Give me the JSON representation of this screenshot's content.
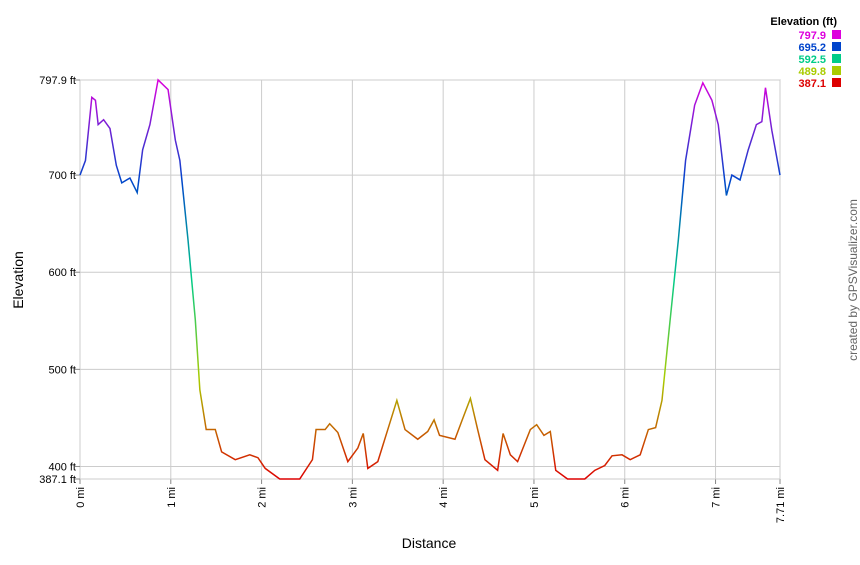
{
  "chart_data": {
    "type": "line",
    "x_label": "Distance",
    "y_label": "Elevation",
    "watermark": "created by GPSVisualizer.com",
    "series": [
      {
        "name": "Elevation",
        "x": [
          0,
          0.06,
          0.13,
          0.17,
          0.2,
          0.26,
          0.33,
          0.4,
          0.46,
          0.55,
          0.63,
          0.69,
          0.77,
          0.86,
          0.97,
          1.05,
          1.1,
          1.19,
          1.27,
          1.32,
          1.39,
          1.49,
          1.56,
          1.71,
          1.87,
          1.96,
          2.04,
          2.2,
          2.42,
          2.56,
          2.6,
          2.7,
          2.75,
          2.84,
          2.95,
          3.06,
          3.12,
          3.17,
          3.28,
          3.39,
          3.49,
          3.58,
          3.72,
          3.83,
          3.9,
          3.96,
          4.13,
          4.21,
          4.3,
          4.38,
          4.46,
          4.6,
          4.66,
          4.74,
          4.82,
          4.96,
          5.03,
          5.11,
          5.18,
          5.24,
          5.37,
          5.56,
          5.67,
          5.78,
          5.86,
          5.97,
          6.06,
          6.17,
          6.26,
          6.34,
          6.41,
          6.5,
          6.59,
          6.67,
          6.77,
          6.86,
          6.96,
          7.03,
          7.12,
          7.18,
          7.27,
          7.36,
          7.45,
          7.51,
          7.55,
          7.62,
          7.71
        ],
        "values": [
          700,
          715,
          780,
          777,
          752,
          757,
          748,
          710,
          692,
          697,
          682,
          726,
          752,
          798,
          788,
          736,
          715,
          633,
          551,
          479,
          438,
          438,
          415,
          407,
          412,
          409,
          398,
          387.1,
          387.1,
          407,
          438,
          438,
          444,
          435,
          405,
          419,
          434,
          398,
          405,
          438,
          468,
          438,
          428,
          436,
          448,
          432,
          428,
          448,
          470,
          438,
          407,
          396,
          434,
          412,
          405,
          438,
          443,
          432,
          436,
          396,
          387.1,
          387.1,
          396,
          401,
          411,
          412,
          407,
          412,
          438,
          440,
          468,
          551,
          633,
          715,
          772,
          795,
          777,
          752,
          679,
          700,
          695,
          726,
          752,
          755,
          790,
          746,
          700
        ]
      }
    ],
    "xlim": [
      0,
      7.71
    ],
    "xticks": [
      {
        "value": 0,
        "label": "0 mi"
      },
      {
        "value": 1,
        "label": "1 mi"
      },
      {
        "value": 2,
        "label": "2 mi"
      },
      {
        "value": 3,
        "label": "3 mi"
      },
      {
        "value": 4,
        "label": "4 mi"
      },
      {
        "value": 5,
        "label": "5 mi"
      },
      {
        "value": 6,
        "label": "6 mi"
      },
      {
        "value": 7,
        "label": "7 mi"
      },
      {
        "value": 7.71,
        "label": "7.71 mi"
      }
    ],
    "ylim": [
      387.1,
      797.9
    ],
    "yticks": [
      {
        "value": 387.1,
        "label": "387.1 ft"
      },
      {
        "value": 400,
        "label": "400 ft"
      },
      {
        "value": 500,
        "label": "500 ft"
      },
      {
        "value": 600,
        "label": "600 ft"
      },
      {
        "value": 700,
        "label": "700 ft"
      },
      {
        "value": 797.9,
        "label": "797.9 ft"
      }
    ],
    "grid": true,
    "legend": {
      "title": "Elevation (ft)",
      "entries": [
        {
          "label": 797.9,
          "color": "#dd00dd"
        },
        {
          "label": 695.2,
          "color": "#0044cc"
        },
        {
          "label": 592.5,
          "color": "#00cc88"
        },
        {
          "label": 489.8,
          "color": "#aacc00"
        },
        {
          "label": 387.1,
          "color": "#dd0000"
        }
      ]
    }
  }
}
